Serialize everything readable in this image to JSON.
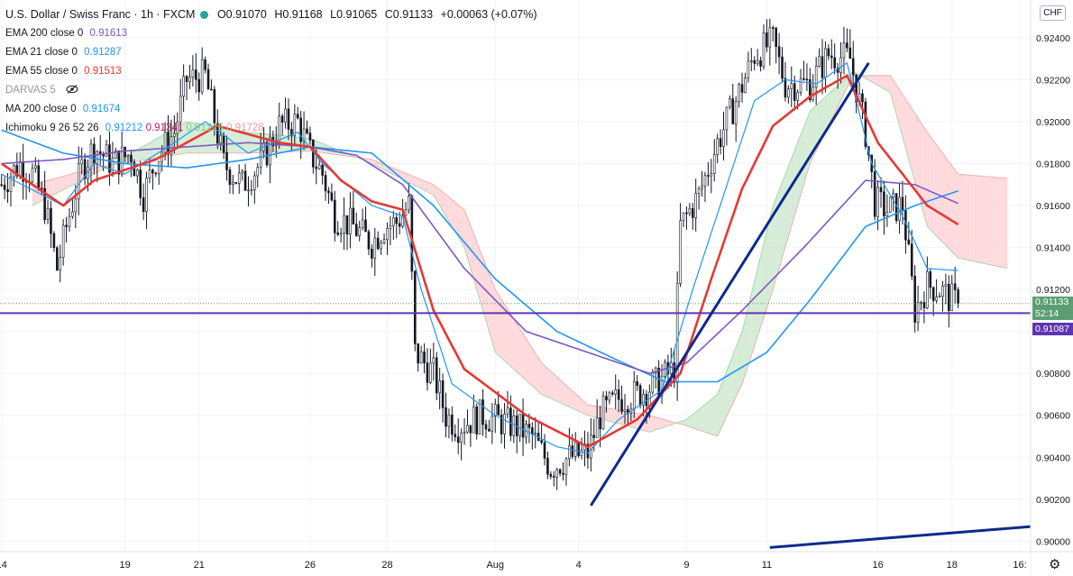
{
  "header": {
    "symbol": "U.S. Dollar / Swiss Franc · 1h · FXCM",
    "ohlc": {
      "open": "O0.91070",
      "high": "H0.91168",
      "low": "L0.91065",
      "close": "C0.91133",
      "change": "+0.00063 (+0.07%)"
    }
  },
  "indicators": [
    {
      "label": "EMA 200 close 0",
      "value": "0.91613",
      "color": "#7e57c2"
    },
    {
      "label": "EMA 21 close 0",
      "value": "0.91287",
      "color": "#2196f3"
    },
    {
      "label": "EMA 55 close 0",
      "value": "0.91513",
      "color": "#e53935"
    },
    {
      "label": "DARVAS 5",
      "value": "",
      "color": "#9598a1"
    },
    {
      "label": "MA 200 close 0",
      "value": "0.91674",
      "color": "#2196f3"
    }
  ],
  "ichimoku": {
    "label": "Ichimoku 9 26 52 26",
    "values": [
      "0.91212",
      "0.91341",
      "0.91276",
      "0.91728"
    ],
    "colors": [
      "#2196f3",
      "#c2185b",
      "#81c784",
      "#ef9a9a"
    ]
  },
  "currency_button": "CHF",
  "price_tags": {
    "last": "0.91133",
    "countdown": "52:14",
    "line": "0.91087"
  },
  "colors": {
    "up": "#131722",
    "ema200": "#7e57c2",
    "ema21": "#2196f3",
    "ema55": "#e53935",
    "ma200": "#2196f3",
    "trend": "#0d2a8c",
    "hline": "#5e35b1",
    "cloud_bull": "#c8e6c9",
    "cloud_bear": "#ffcdd2",
    "last_tag": "#5b9e74",
    "line_tag": "#5e35b1"
  },
  "chart_data": {
    "type": "line",
    "ylim": [
      0.8995,
      0.9258
    ],
    "y_ticks": [
      "0.92400",
      "0.92200",
      "0.92000",
      "0.91800",
      "0.91600",
      "0.91400",
      "0.91200",
      "0.91000",
      "0.90800",
      "0.90600",
      "0.90400",
      "0.90200",
      "0.90000"
    ],
    "x_ticks": [
      "14",
      "19",
      "21",
      "26",
      "28",
      "Aug",
      "4",
      "9",
      "11",
      "16",
      "18",
      "16:"
    ],
    "x_tick_bar": [
      0,
      40,
      64,
      100,
      125,
      160,
      187,
      222,
      248,
      284,
      308,
      330
    ],
    "n_bars": 334,
    "hline": 0.91087,
    "last_price": 0.91133,
    "price_anchors": [
      [
        0,
        0.917
      ],
      [
        6,
        0.918
      ],
      [
        10,
        0.9175
      ],
      [
        14,
        0.916
      ],
      [
        18,
        0.913
      ],
      [
        21,
        0.915
      ],
      [
        26,
        0.9178
      ],
      [
        30,
        0.9188
      ],
      [
        36,
        0.918
      ],
      [
        42,
        0.9185
      ],
      [
        46,
        0.9165
      ],
      [
        50,
        0.9182
      ],
      [
        56,
        0.9195
      ],
      [
        60,
        0.922
      ],
      [
        66,
        0.9222
      ],
      [
        72,
        0.918
      ],
      [
        78,
        0.917
      ],
      [
        84,
        0.918
      ],
      [
        90,
        0.9198
      ],
      [
        96,
        0.92
      ],
      [
        100,
        0.9185
      ],
      [
        104,
        0.9175
      ],
      [
        108,
        0.9155
      ],
      [
        114,
        0.915
      ],
      [
        120,
        0.9142
      ],
      [
        124,
        0.915
      ],
      [
        128,
        0.9152
      ],
      [
        132,
        0.916
      ],
      [
        134,
        0.909
      ],
      [
        140,
        0.908
      ],
      [
        144,
        0.906
      ],
      [
        148,
        0.9055
      ],
      [
        156,
        0.906
      ],
      [
        166,
        0.9055
      ],
      [
        172,
        0.905
      ],
      [
        178,
        0.9035
      ],
      [
        184,
        0.904
      ],
      [
        190,
        0.9042
      ],
      [
        194,
        0.906
      ],
      [
        200,
        0.9068
      ],
      [
        206,
        0.907
      ],
      [
        212,
        0.9075
      ],
      [
        218,
        0.9082
      ],
      [
        220,
        0.915
      ],
      [
        226,
        0.9165
      ],
      [
        232,
        0.919
      ],
      [
        238,
        0.921
      ],
      [
        244,
        0.9232
      ],
      [
        250,
        0.9238
      ],
      [
        254,
        0.9218
      ],
      [
        262,
        0.9218
      ],
      [
        268,
        0.9232
      ],
      [
        275,
        0.923
      ],
      [
        280,
        0.9195
      ],
      [
        283,
        0.9162
      ],
      [
        287,
        0.9158
      ],
      [
        292,
        0.916
      ],
      [
        296,
        0.911
      ],
      [
        300,
        0.9122
      ],
      [
        304,
        0.912
      ],
      [
        308,
        0.9115
      ],
      [
        310,
        0.91133
      ]
    ],
    "ema21_anchors": [
      [
        0,
        0.9175
      ],
      [
        20,
        0.916
      ],
      [
        30,
        0.918
      ],
      [
        40,
        0.9175
      ],
      [
        56,
        0.919
      ],
      [
        66,
        0.92
      ],
      [
        80,
        0.9185
      ],
      [
        96,
        0.9195
      ],
      [
        104,
        0.918
      ],
      [
        120,
        0.916
      ],
      [
        130,
        0.9155
      ],
      [
        136,
        0.912
      ],
      [
        146,
        0.9075
      ],
      [
        160,
        0.906
      ],
      [
        180,
        0.9045
      ],
      [
        190,
        0.9042
      ],
      [
        200,
        0.9058
      ],
      [
        214,
        0.9072
      ],
      [
        224,
        0.912
      ],
      [
        234,
        0.9165
      ],
      [
        244,
        0.921
      ],
      [
        254,
        0.922
      ],
      [
        264,
        0.9218
      ],
      [
        274,
        0.9228
      ],
      [
        282,
        0.918
      ],
      [
        292,
        0.9155
      ],
      [
        300,
        0.913
      ],
      [
        310,
        0.9129
      ]
    ],
    "ema55_anchors": [
      [
        0,
        0.918
      ],
      [
        10,
        0.917
      ],
      [
        20,
        0.916
      ],
      [
        30,
        0.9172
      ],
      [
        50,
        0.9182
      ],
      [
        70,
        0.9198
      ],
      [
        90,
        0.919
      ],
      [
        100,
        0.9188
      ],
      [
        110,
        0.9172
      ],
      [
        120,
        0.9162
      ],
      [
        130,
        0.9158
      ],
      [
        140,
        0.911
      ],
      [
        150,
        0.9082
      ],
      [
        170,
        0.906
      ],
      [
        190,
        0.9045
      ],
      [
        206,
        0.9058
      ],
      [
        220,
        0.908
      ],
      [
        230,
        0.9125
      ],
      [
        240,
        0.9168
      ],
      [
        250,
        0.9198
      ],
      [
        262,
        0.9212
      ],
      [
        274,
        0.9222
      ],
      [
        284,
        0.919
      ],
      [
        300,
        0.916
      ],
      [
        310,
        0.9151
      ]
    ],
    "ema200_anchors": [
      [
        0,
        0.918
      ],
      [
        20,
        0.9182
      ],
      [
        40,
        0.9186
      ],
      [
        60,
        0.9188
      ],
      [
        80,
        0.919
      ],
      [
        100,
        0.9188
      ],
      [
        115,
        0.9184
      ],
      [
        130,
        0.917
      ],
      [
        150,
        0.913
      ],
      [
        170,
        0.91
      ],
      [
        190,
        0.909
      ],
      [
        210,
        0.908
      ],
      [
        222,
        0.9085
      ],
      [
        240,
        0.911
      ],
      [
        260,
        0.914
      ],
      [
        280,
        0.9172
      ],
      [
        296,
        0.917
      ],
      [
        310,
        0.9161
      ]
    ],
    "ma200_anchors": [
      [
        0,
        0.9196
      ],
      [
        20,
        0.9185
      ],
      [
        40,
        0.918
      ],
      [
        60,
        0.9178
      ],
      [
        80,
        0.9182
      ],
      [
        100,
        0.9188
      ],
      [
        120,
        0.9185
      ],
      [
        140,
        0.916
      ],
      [
        160,
        0.9125
      ],
      [
        180,
        0.91
      ],
      [
        200,
        0.9086
      ],
      [
        215,
        0.9076
      ],
      [
        232,
        0.9076
      ],
      [
        248,
        0.909
      ],
      [
        262,
        0.9115
      ],
      [
        280,
        0.915
      ],
      [
        296,
        0.916
      ],
      [
        310,
        0.9167
      ]
    ],
    "cloud_a_anchors": [
      [
        10,
        0.916
      ],
      [
        30,
        0.9175
      ],
      [
        60,
        0.92
      ],
      [
        80,
        0.9195
      ],
      [
        100,
        0.9192
      ],
      [
        120,
        0.918
      ],
      [
        140,
        0.9165
      ],
      [
        150,
        0.914
      ],
      [
        160,
        0.909
      ],
      [
        175,
        0.907
      ],
      [
        190,
        0.906
      ],
      [
        210,
        0.9052
      ],
      [
        222,
        0.9058
      ],
      [
        232,
        0.907
      ],
      [
        240,
        0.91
      ],
      [
        250,
        0.916
      ],
      [
        262,
        0.9205
      ],
      [
        276,
        0.9224
      ],
      [
        288,
        0.9214
      ],
      [
        300,
        0.915
      ],
      [
        310,
        0.9135
      ],
      [
        326,
        0.913
      ]
    ],
    "cloud_b_anchors": [
      [
        10,
        0.917
      ],
      [
        30,
        0.9178
      ],
      [
        60,
        0.9185
      ],
      [
        80,
        0.9185
      ],
      [
        100,
        0.9186
      ],
      [
        120,
        0.9182
      ],
      [
        140,
        0.917
      ],
      [
        150,
        0.9158
      ],
      [
        160,
        0.912
      ],
      [
        175,
        0.9085
      ],
      [
        190,
        0.9065
      ],
      [
        210,
        0.906
      ],
      [
        222,
        0.9055
      ],
      [
        232,
        0.905
      ],
      [
        240,
        0.9075
      ],
      [
        250,
        0.912
      ],
      [
        262,
        0.918
      ],
      [
        276,
        0.9222
      ],
      [
        288,
        0.9222
      ],
      [
        300,
        0.9195
      ],
      [
        310,
        0.9175
      ],
      [
        326,
        0.9173
      ]
    ],
    "trendlines": [
      {
        "from": [
          191,
          0.9017
        ],
        "to": [
          281,
          0.9228
        ]
      },
      {
        "from": [
          249,
          0.8997
        ],
        "to": [
          334,
          0.9007
        ]
      }
    ]
  }
}
